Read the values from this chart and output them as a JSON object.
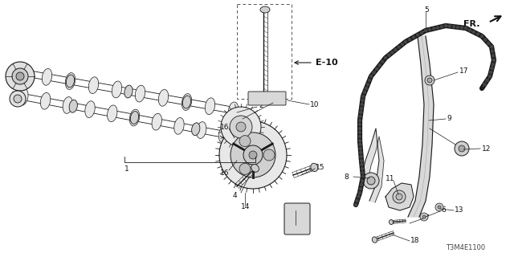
{
  "background_color": "#ffffff",
  "fig_width": 6.4,
  "fig_height": 3.2,
  "dpi": 100,
  "line_color": "#1a1a1a",
  "label_fontsize": 6.5,
  "label_color": "#111111",
  "part_code": "T3M4E1100",
  "e10_text": "E-10",
  "fr_text": "FR."
}
